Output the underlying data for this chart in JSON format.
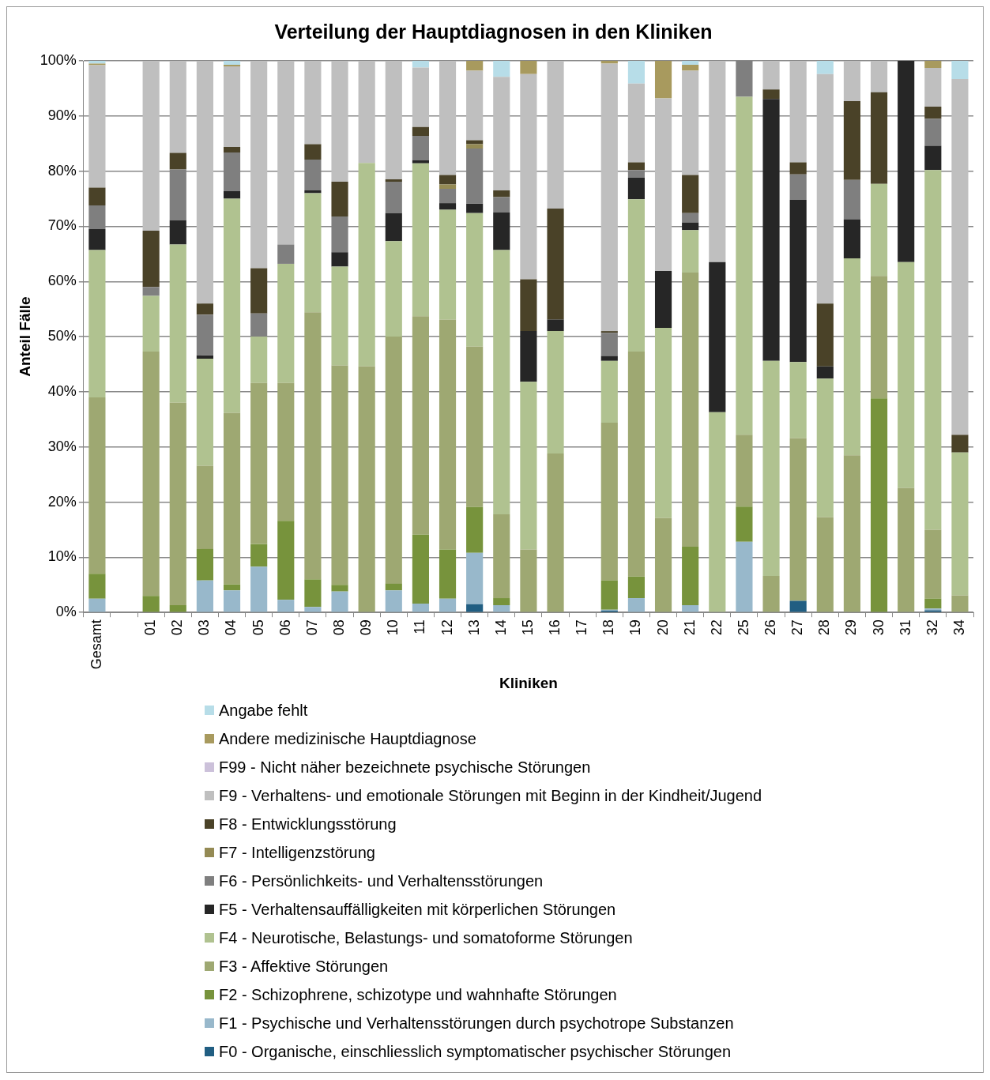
{
  "chart_data": {
    "type": "bar",
    "stacked": true,
    "title": "Verteilung der Hauptdiagnosen in den Kliniken",
    "xlabel": "Kliniken",
    "ylabel": "Anteil Fälle",
    "categories": [
      "Gesamt",
      null,
      "01",
      "02",
      "03",
      "04",
      "05",
      "06",
      "07",
      "08",
      "09",
      "10",
      "11",
      "12",
      "13",
      "14",
      "15",
      "16",
      "17",
      "18",
      "19",
      "20",
      "21",
      "22",
      "25",
      "26",
      "27",
      "28",
      "29",
      "30",
      "31",
      "32",
      "34"
    ],
    "ylim": [
      0,
      100
    ],
    "yticks": [
      {
        "value": 0,
        "label": "0%"
      },
      {
        "value": 10,
        "label": "10%"
      },
      {
        "value": 20,
        "label": "20%"
      },
      {
        "value": 30,
        "label": "30%"
      },
      {
        "value": 40,
        "label": "40%"
      },
      {
        "value": 50,
        "label": "50%"
      },
      {
        "value": 60,
        "label": "60%"
      },
      {
        "value": 70,
        "label": "70%"
      },
      {
        "value": 80,
        "label": "80%"
      },
      {
        "value": 90,
        "label": "90%"
      },
      {
        "value": 100,
        "label": "100%"
      }
    ],
    "grid": "y",
    "legend": "bottom",
    "series": [
      {
        "name": "F0 - Organische, einschliesslich symptomatischer psychischer Störungen",
        "color": "#215e82",
        "values": [
          0,
          null,
          0,
          0,
          0,
          0,
          0,
          0,
          0,
          0,
          0,
          0,
          0,
          0,
          1.5,
          0,
          0,
          0,
          null,
          0.3,
          0,
          0,
          0,
          0,
          0,
          0,
          2.1,
          0,
          0,
          0,
          0,
          0.4,
          0
        ]
      },
      {
        "name": "F1 - Psychische und Verhaltensstörungen durch psychotrope Substanzen",
        "color": "#98b8cb",
        "values": [
          2.5,
          null,
          0,
          0,
          5.8,
          4,
          8.3,
          2.3,
          1,
          3.8,
          0,
          4,
          1.6,
          2.5,
          9.3,
          1.3,
          0,
          0,
          null,
          0.2,
          2.6,
          0,
          1.3,
          0,
          12.8,
          0,
          0,
          0,
          0,
          0,
          0,
          0.3,
          0
        ]
      },
      {
        "name": "F2 - Schizophrene, schizotype und wahnhafte Störungen",
        "color": "#77933c",
        "values": [
          4.5,
          null,
          3,
          1.3,
          5.7,
          1.1,
          4.1,
          14.3,
          5,
          1.2,
          0,
          1.2,
          12.5,
          8.9,
          8.3,
          1.3,
          0,
          0,
          null,
          5.3,
          3.9,
          0,
          10.6,
          0,
          6.4,
          0,
          0,
          0,
          0,
          38.8,
          0,
          1.8,
          0
        ]
      },
      {
        "name": "F3 - Affektive Störungen",
        "color": "#9ea872",
        "values": [
          32,
          null,
          44.3,
          36.7,
          15.1,
          31.1,
          29.2,
          25,
          48.4,
          39.8,
          44.6,
          44.8,
          39.6,
          41.7,
          29.1,
          15.2,
          11.4,
          28.8,
          null,
          28.6,
          40.8,
          17.1,
          49.7,
          0,
          13,
          6.6,
          29.5,
          17.3,
          28.5,
          22.2,
          22.6,
          12.5,
          3.1
        ]
      },
      {
        "name": "F4 - Neurotische, Belastungs- und somatoforme Störungen",
        "color": "#b0c290",
        "values": [
          26.7,
          null,
          10.1,
          28.7,
          19.4,
          38.8,
          8.4,
          21.6,
          21.6,
          17.9,
          36.9,
          17.3,
          27.7,
          19.9,
          24.2,
          47.9,
          30.4,
          22.2,
          null,
          11.2,
          27.6,
          34.5,
          7.7,
          36.3,
          61.3,
          39,
          13.8,
          25.1,
          35.7,
          16.7,
          40.9,
          65.2,
          25.9
        ]
      },
      {
        "name": "F5 - Verhaltensauffälligkeiten mit körperlichen Störungen",
        "color": "#262626",
        "values": [
          3.8,
          null,
          0,
          4.4,
          0.6,
          1.4,
          0,
          0,
          0.5,
          2.6,
          0,
          5.1,
          0.6,
          1.2,
          1.7,
          6.8,
          9.2,
          2.1,
          null,
          0.9,
          3.9,
          10.3,
          1.4,
          27.2,
          0,
          47.5,
          29.4,
          2.2,
          7.1,
          0,
          36.5,
          4.4,
          0
        ]
      },
      {
        "name": "F6 - Persönlichkeits- und Verhaltensstörungen",
        "color": "#7f7f7f",
        "values": [
          4.3,
          null,
          1.6,
          9.2,
          7.4,
          7,
          4.2,
          3.5,
          5.6,
          6.5,
          0,
          5.7,
          4.4,
          2.6,
          10,
          2.8,
          0,
          0,
          null,
          4.2,
          1.4,
          0,
          1.7,
          0,
          6.5,
          0,
          4.6,
          0,
          7.1,
          0,
          0,
          4.9,
          0
        ]
      },
      {
        "name": "F7 - Intelligenzstörung",
        "color": "#948a54",
        "values": [
          0,
          null,
          0,
          0,
          0,
          0,
          0,
          0,
          0,
          0,
          0,
          0,
          0,
          0.8,
          0.8,
          0,
          0,
          0,
          null,
          0,
          0,
          0,
          0,
          0,
          0,
          0,
          0,
          0,
          0,
          0,
          0,
          0,
          0
        ]
      },
      {
        "name": "F8 - Entwicklungsstörung",
        "color": "#4a4228",
        "values": [
          3.2,
          null,
          10.2,
          3,
          2,
          1,
          8.2,
          0,
          2.8,
          6.3,
          0,
          0.4,
          1.6,
          1.7,
          0.7,
          1.2,
          9.4,
          20.1,
          null,
          0.3,
          1.4,
          0,
          6.9,
          0,
          0,
          1.7,
          2.2,
          11.4,
          14.3,
          16.6,
          0,
          2.2,
          3.2
        ]
      },
      {
        "name": "F9 - Verhaltens- und emotionale Störungen mit Beginn in der Kindheit/Jugend",
        "color": "#bfbfbf",
        "values": [
          22.2,
          null,
          30.8,
          16.7,
          44,
          14.6,
          37.6,
          33.3,
          15.1,
          21.9,
          18.5,
          21.5,
          10.8,
          20.7,
          12.6,
          20.6,
          37.2,
          26.8,
          null,
          48.5,
          14.3,
          31.3,
          18.9,
          36.5,
          0,
          5.2,
          18.4,
          41.6,
          7.3,
          5.7,
          0,
          7,
          64.5
        ]
      },
      {
        "name": "F99 - Nicht näher bezeichnete psychische Störungen",
        "color": "#ccc1da",
        "values": [
          0,
          null,
          0,
          0,
          0,
          0,
          0,
          0,
          0,
          0,
          0,
          0,
          0,
          0,
          0,
          0,
          0,
          0,
          null,
          0,
          0,
          0,
          0,
          0,
          0,
          0,
          0,
          0,
          0,
          0,
          0,
          0,
          0
        ]
      },
      {
        "name": "Andere medizinische Hauptdiagnose",
        "color": "#a89a5e",
        "values": [
          0.3,
          null,
          0,
          0,
          0,
          0.3,
          0,
          0,
          0,
          0,
          0,
          0,
          0,
          0,
          1.8,
          0,
          2.4,
          0,
          null,
          0.5,
          0,
          6.8,
          1.1,
          0,
          0,
          0,
          0,
          0,
          0,
          0,
          0,
          1.3,
          0
        ]
      },
      {
        "name": "Angabe fehlt",
        "color": "#b7dde8",
        "values": [
          0.5,
          null,
          0,
          0,
          0,
          0.7,
          0,
          0,
          0,
          0,
          0,
          0,
          1.2,
          0,
          0,
          2.9,
          0,
          0,
          null,
          0,
          4.1,
          0,
          0.7,
          0,
          0,
          0,
          0,
          2.4,
          0,
          0,
          0,
          0,
          3.3
        ]
      }
    ]
  }
}
